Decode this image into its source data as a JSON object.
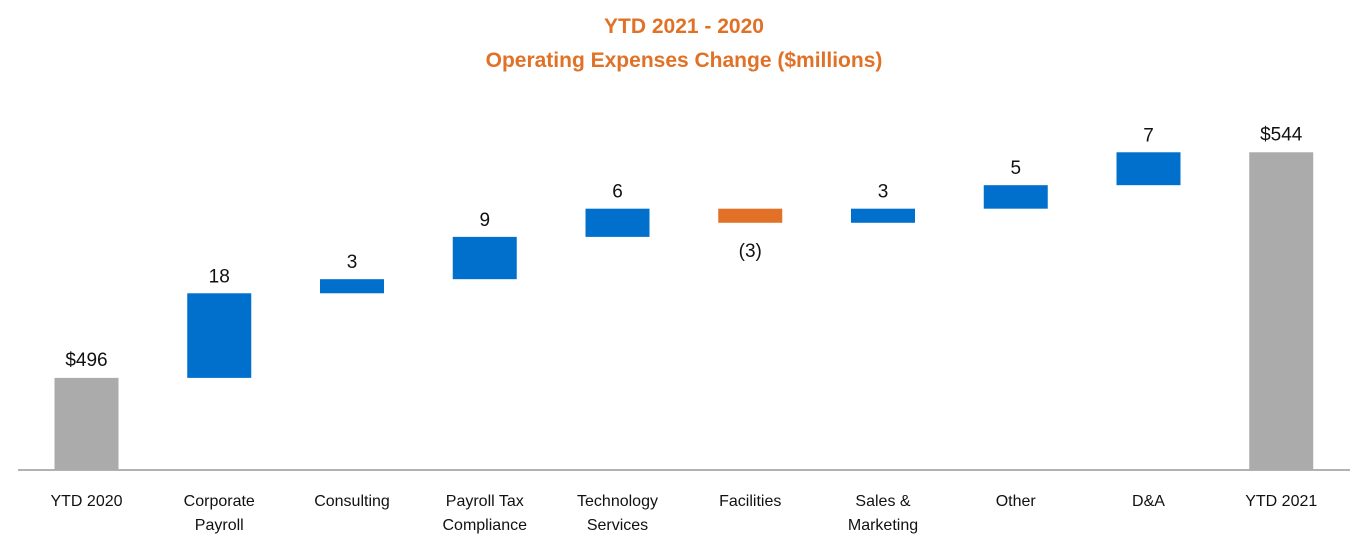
{
  "chart_data": {
    "type": "bar",
    "subtype": "waterfall",
    "title": "YTD 2021 - 2020",
    "subtitle": "Operating Expenses Change ($millions)",
    "xlabel": "",
    "ylabel": "",
    "grid": false,
    "categories": [
      [
        "YTD 2020"
      ],
      [
        "Corporate",
        "Payroll"
      ],
      [
        "Consulting"
      ],
      [
        "Payroll Tax",
        "Compliance"
      ],
      [
        "Technology",
        "Services"
      ],
      [
        "Facilities"
      ],
      [
        "Sales &",
        "Marketing"
      ],
      [
        "Other"
      ],
      [
        "D&A"
      ],
      [
        "YTD 2021"
      ]
    ],
    "values": [
      496,
      18,
      3,
      9,
      6,
      -3,
      3,
      5,
      7,
      544
    ],
    "kinds": [
      "total",
      "delta",
      "delta",
      "delta",
      "delta",
      "delta",
      "delta",
      "delta",
      "delta",
      "total"
    ],
    "data_labels": [
      "$496",
      "18",
      "3",
      "9",
      "6",
      "(3)",
      "3",
      "5",
      "7",
      "$544"
    ],
    "colors": {
      "total": "#ababab",
      "increase": "#0070cc",
      "decrease": "#e07126",
      "title": "#e07126",
      "axis": "#999999"
    }
  }
}
